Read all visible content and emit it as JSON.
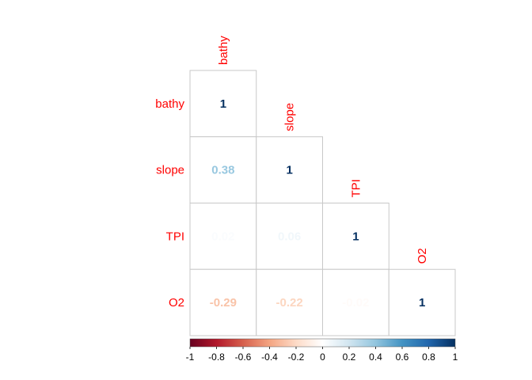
{
  "chart_data": {
    "type": "heatmap",
    "layout": "lower-triangle correlation matrix",
    "variables": [
      "bathy",
      "slope",
      "TPI",
      "O2"
    ],
    "matrix": [
      [
        1,
        null,
        null,
        null
      ],
      [
        0.38,
        1,
        null,
        null
      ],
      [
        0.02,
        0.06,
        1,
        null
      ],
      [
        -0.29,
        -0.22,
        -0.02,
        1
      ]
    ],
    "labels": [
      [
        "1",
        null,
        null,
        null
      ],
      [
        "0.38",
        "1",
        null,
        null
      ],
      [
        "0.02",
        "0.06",
        "1",
        null
      ],
      [
        "-0.29",
        "-0.22",
        "-0.02",
        "1"
      ]
    ],
    "label_color": "#ff0000",
    "colorbar": {
      "range": [
        -1,
        1
      ],
      "ticks": [
        "-1",
        "-0.8",
        "-0.6",
        "-0.4",
        "-0.2",
        "0",
        "0.2",
        "0.4",
        "0.6",
        "0.8",
        "1"
      ],
      "colors": [
        "#67001f",
        "#b2182b",
        "#d6604d",
        "#f4a582",
        "#fddbc7",
        "#ffffff",
        "#d1e5f0",
        "#92c5de",
        "#4393c3",
        "#2166ac",
        "#053061"
      ]
    }
  }
}
